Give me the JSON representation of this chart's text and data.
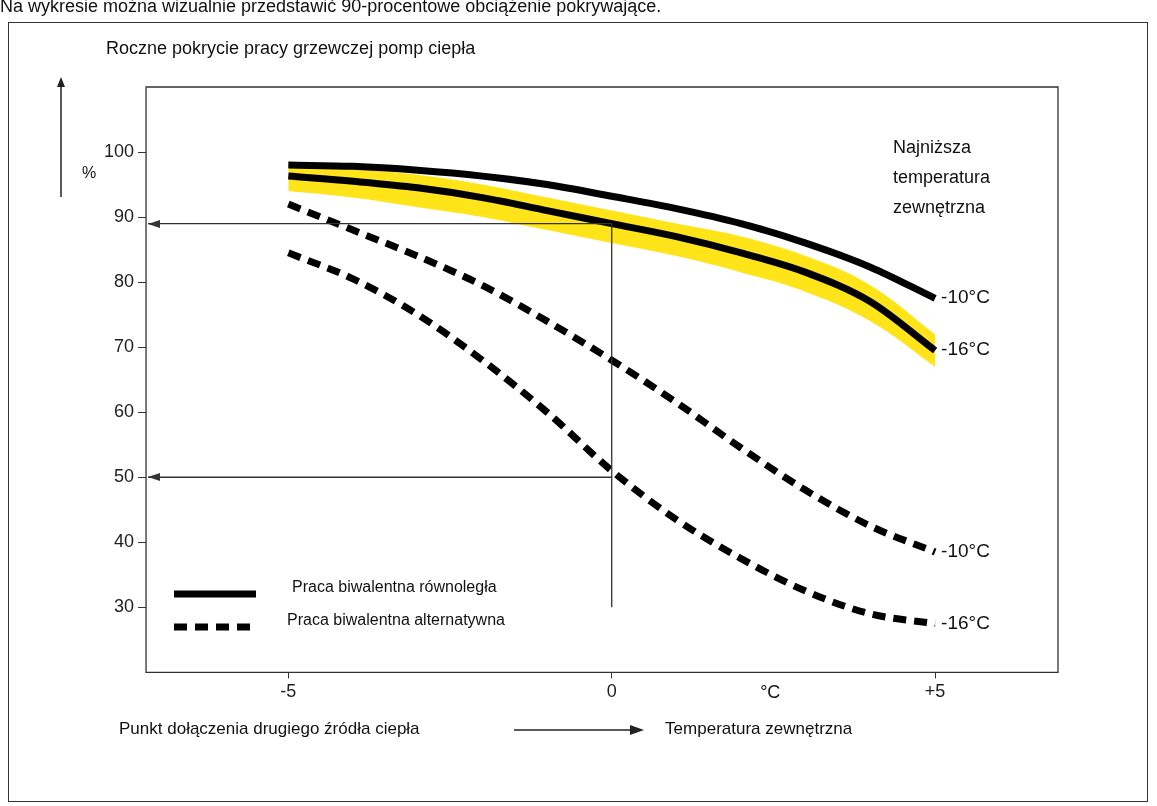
{
  "chart_data": {
    "type": "line",
    "title": "Roczne pokrycie pracy grzewczej pomp ciepła",
    "xlabel": "Temperatura zewnętrzna",
    "ylabel": "%",
    "legend_title": "Najniższa temperatura zewnętrzna",
    "annotations": [
      "Na wykresie można wizualnie przedstawić 90-procentowe obciążenie pokrywające.",
      "Praca biwalentna równoległa",
      "Praca biwalentna alternatywna",
      "°C",
      "Punkt dołączenia drugiego źródła ciepła"
    ],
    "x": [
      -5,
      -4,
      -3,
      -2,
      -1,
      0,
      1,
      2,
      3,
      4,
      5
    ],
    "series": [
      {
        "name": "-10°C",
        "color": "#000000",
        "line_style": "solid",
        "values": [
          98,
          97.8,
          97.2,
          96.3,
          95,
          93.2,
          91.3,
          89,
          86,
          82.3,
          77.5
        ]
      },
      {
        "name": "-16°C",
        "color": "#000000",
        "line_style": "solid",
        "values": [
          96.3,
          95.5,
          94.5,
          93,
          91,
          89,
          87,
          84.5,
          81.5,
          77,
          69.5
        ],
        "lower": [
          94,
          93,
          91.5,
          90,
          88,
          86,
          84,
          81.5,
          78.5,
          74,
          67
        ],
        "upper": [
          98.5,
          97.5,
          96.5,
          95,
          93,
          91,
          89,
          87,
          84,
          79.5,
          72
        ]
      },
      {
        "name": "-10°C",
        "color": "#000000",
        "line_style": "dashed",
        "values": [
          92,
          88,
          84,
          79.5,
          74,
          68,
          61.5,
          54.5,
          48,
          42.5,
          38.5
        ]
      },
      {
        "name": "-16°C",
        "color": "#000000",
        "line_style": "dashed",
        "values": [
          84.5,
          80.5,
          75,
          68,
          60,
          51,
          43.5,
          37.5,
          32.5,
          29,
          27.5
        ]
      }
    ],
    "xlim": [
      -7.2,
      6.9
    ],
    "ylim": [
      20,
      110
    ],
    "xticks": [
      -5,
      0,
      {
        "value": 5,
        "label": "+5"
      }
    ],
    "yticks": [
      30,
      40,
      50,
      60,
      70,
      80,
      90,
      100
    ],
    "ref_lines": [
      {
        "axis": "y",
        "value": 89
      },
      {
        "axis": "y",
        "value": 50
      },
      {
        "axis": "x",
        "value": 0
      }
    ],
    "grid": false,
    "legend": "right",
    "marker": "none"
  }
}
